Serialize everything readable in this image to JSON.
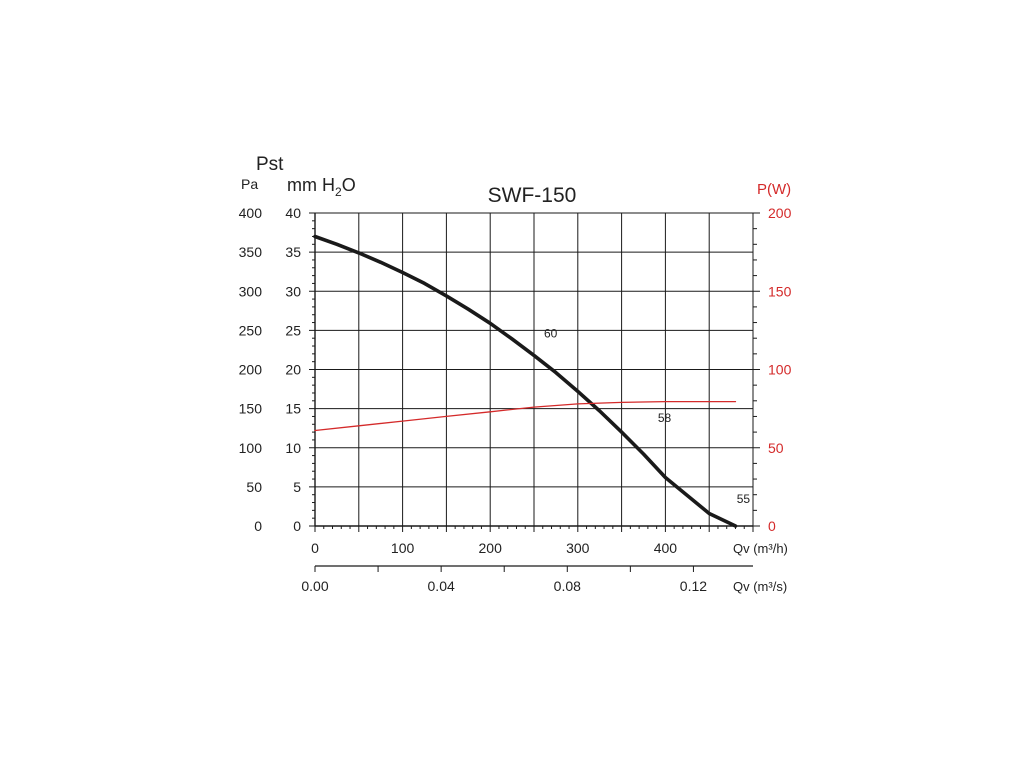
{
  "chart_data": {
    "type": "line",
    "title": "SWF-150",
    "ylabel_main": "Pst",
    "ylabel_pa": "Pa",
    "ylabel_mm_prefix": "mm H",
    "ylabel_mm_sub": "2",
    "ylabel_mm_suffix": "O",
    "y2label": "P(W)",
    "xlabel_m3h": "Qv (m³/h)",
    "xlabel_m3s": "Qv (m³/s)",
    "pa_ticks": [
      "0",
      "50",
      "100",
      "150",
      "200",
      "250",
      "300",
      "350",
      "400"
    ],
    "mm_ticks": [
      "0",
      "5",
      "10",
      "15",
      "20",
      "25",
      "30",
      "35",
      "40"
    ],
    "w_ticks": [
      "0",
      "50",
      "100",
      "150",
      "200"
    ],
    "x_ticks": [
      "0",
      "100",
      "200",
      "300",
      "400"
    ],
    "x2_ticks": [
      "0.00",
      "0.04",
      "0.08",
      "0.12"
    ],
    "xlim": [
      0,
      480
    ],
    "ylim_pa": [
      0,
      400
    ],
    "ylim_w": [
      0,
      200
    ],
    "grid": true,
    "series": [
      {
        "color": "#1a1a1a",
        "axis": "pa",
        "x": [
          0,
          25,
          50,
          75,
          100,
          125,
          150,
          175,
          200,
          225,
          250,
          275,
          300,
          325,
          350,
          375,
          400,
          425,
          450,
          480
        ],
        "y": [
          370,
          360,
          349,
          337,
          324,
          310,
          294,
          277,
          259,
          239,
          218,
          196,
          172,
          147,
          120,
          92,
          62,
          39,
          16,
          0
        ]
      },
      {
        "color": "#d42a2a",
        "axis": "w",
        "x": [
          0,
          50,
          100,
          150,
          200,
          250,
          300,
          350,
          400,
          440,
          480
        ],
        "y": [
          61,
          64,
          67,
          70,
          73,
          76,
          78,
          79,
          79.5,
          79.5,
          79.5
        ]
      }
    ],
    "annotations": [
      {
        "text": "60",
        "x": 250,
        "y": 236
      },
      {
        "text": "58",
        "x": 380,
        "y": 128
      },
      {
        "text": "55",
        "x": 470,
        "y": 24
      }
    ]
  }
}
